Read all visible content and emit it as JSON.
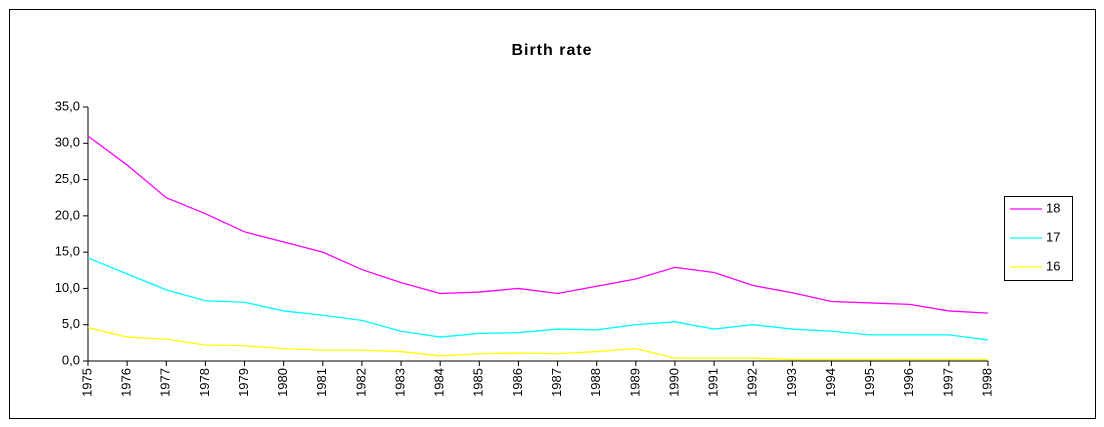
{
  "chart_data": {
    "type": "line",
    "title": "Birth rate",
    "categories": [
      "1975",
      "1976",
      "1977",
      "1978",
      "1979",
      "1980",
      "1981",
      "1982",
      "1983",
      "1984",
      "1985",
      "1986",
      "1987",
      "1988",
      "1989",
      "1990",
      "1991",
      "1992",
      "1993",
      "1994",
      "1995",
      "1996",
      "1997",
      "1998"
    ],
    "series": [
      {
        "name": "18",
        "color": "#ff00ff",
        "values": [
          31.0,
          27.0,
          22.5,
          20.3,
          17.8,
          16.4,
          15.0,
          12.6,
          10.8,
          9.3,
          9.5,
          10.0,
          9.3,
          10.3,
          11.3,
          12.9,
          12.2,
          10.4,
          9.4,
          8.2,
          8.0,
          7.8,
          6.9,
          6.6
        ]
      },
      {
        "name": "17",
        "color": "#00ffff",
        "values": [
          14.2,
          12.0,
          9.8,
          8.3,
          8.1,
          6.9,
          6.3,
          5.6,
          4.1,
          3.3,
          3.8,
          3.9,
          4.4,
          4.3,
          5.0,
          5.4,
          4.4,
          5.0,
          4.4,
          4.1,
          3.6,
          3.6,
          3.6,
          2.9
        ]
      },
      {
        "name": "16",
        "color": "#ffff00",
        "values": [
          4.6,
          3.3,
          3.0,
          2.2,
          2.1,
          1.7,
          1.5,
          1.5,
          1.3,
          0.7,
          1.0,
          1.1,
          1.0,
          1.3,
          1.7,
          0.4,
          0.4,
          0.4,
          0.2,
          0.2,
          0.2,
          0.2,
          0.2,
          0.2
        ]
      }
    ],
    "ylim": [
      0,
      35
    ],
    "yticks": [
      {
        "value": 0,
        "label": "0,0"
      },
      {
        "value": 5,
        "label": "5,0"
      },
      {
        "value": 10,
        "label": "10,0"
      },
      {
        "value": 15,
        "label": "15,0"
      },
      {
        "value": 20,
        "label": "20,0"
      },
      {
        "value": 25,
        "label": "25,0"
      },
      {
        "value": 30,
        "label": "30,0"
      },
      {
        "value": 35,
        "label": "35,0"
      }
    ],
    "grid": false,
    "legend": "right"
  }
}
